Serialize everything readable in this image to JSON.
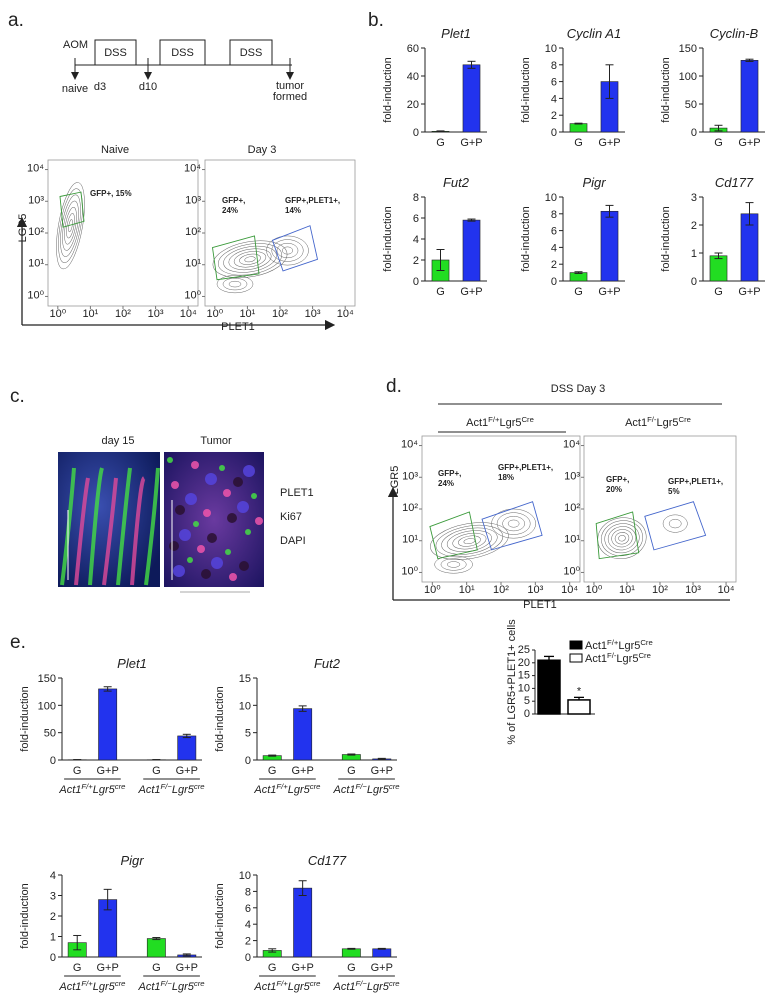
{
  "panel_a": {
    "label": "a.",
    "timeline": {
      "start": "AOM",
      "treatments": [
        "DSS",
        "DSS",
        "DSS"
      ],
      "points": [
        "naive",
        "d3",
        "d10"
      ],
      "end": [
        "tumor",
        "formed"
      ]
    },
    "flow": {
      "x_label": "PLET1",
      "y_label": "LGR5",
      "log": true,
      "lim": [
        0.5,
        20000
      ],
      "ticks": [
        {
          "value": 1,
          "label": "10⁰"
        },
        {
          "value": 10,
          "label": "10¹"
        },
        {
          "value": 100,
          "label": "10²"
        },
        {
          "value": 1000,
          "label": "10³"
        },
        {
          "value": 10000,
          "label": "10⁴"
        }
      ],
      "plots": [
        {
          "title": "Naive",
          "gates": [
            "GFP+, 15%"
          ]
        },
        {
          "title": "Day 3",
          "gates": [
            [
              "GFP+,",
              "24%"
            ],
            [
              "GFP+,PLET1+,",
              "14%"
            ]
          ]
        }
      ]
    }
  },
  "panel_b": {
    "label": "b.",
    "y_label": "fold-induction",
    "bar_colors": {
      "G": "#22dd22",
      "G+P": "#2233ee"
    },
    "charts": [
      {
        "type": "bar",
        "title": "Plet1",
        "categories": [
          "G",
          "G+P"
        ],
        "values": [
          0.5,
          48
        ],
        "errors": [
          0.3,
          2.5
        ],
        "ylim": [
          0,
          60
        ],
        "yticks": [
          0,
          20,
          40,
          60
        ]
      },
      {
        "type": "bar",
        "title": "Cyclin A1",
        "categories": [
          "G",
          "G+P"
        ],
        "values": [
          1,
          6
        ],
        "errors": [
          0.05,
          2
        ],
        "ylim": [
          0,
          10
        ],
        "yticks": [
          0,
          2,
          4,
          6,
          8,
          10
        ]
      },
      {
        "type": "bar",
        "title": "Cyclin-B",
        "categories": [
          "G",
          "G+P"
        ],
        "values": [
          7,
          128
        ],
        "errors": [
          5,
          2
        ],
        "ylim": [
          0,
          150
        ],
        "yticks": [
          0,
          50,
          100,
          150
        ]
      },
      {
        "type": "bar",
        "title": "Fut2",
        "categories": [
          "G",
          "G+P"
        ],
        "values": [
          2,
          5.8
        ],
        "errors": [
          1,
          0.1
        ],
        "ylim": [
          0,
          8
        ],
        "yticks": [
          0,
          2,
          4,
          6,
          8
        ]
      },
      {
        "type": "bar",
        "title": "Pigr",
        "categories": [
          "G",
          "G+P"
        ],
        "values": [
          1,
          8.3
        ],
        "errors": [
          0.1,
          0.7
        ],
        "ylim": [
          0,
          10
        ],
        "yticks": [
          0,
          2,
          4,
          6,
          8,
          10
        ]
      },
      {
        "type": "bar",
        "title": "Cd177",
        "categories": [
          "G",
          "G+P"
        ],
        "values": [
          0.9,
          2.4
        ],
        "errors": [
          0.1,
          0.4
        ],
        "ylim": [
          0,
          3
        ],
        "yticks": [
          0,
          1,
          2,
          3
        ]
      }
    ]
  },
  "panel_c": {
    "label": "c.",
    "titles": [
      "day 15",
      "Tumor"
    ],
    "legend": [
      {
        "name": "PLET1",
        "color": "#33ee33"
      },
      {
        "name": "Ki67",
        "color": "#ee2233"
      },
      {
        "name": "DAPI",
        "color": "#2233dd"
      }
    ]
  },
  "panel_d": {
    "label": "d.",
    "title": "DSS Day 3",
    "headers": [
      [
        "Act1",
        "F/+",
        "Lgr5",
        "Cre"
      ],
      [
        "Act1",
        "F/-",
        "Lgr5",
        "Cre"
      ]
    ],
    "x_label": "PLET1",
    "y_label": "LGR5",
    "gates": [
      [
        [
          "GFP+,",
          "24%"
        ],
        [
          "GFP+,PLET1+,",
          "18%"
        ]
      ],
      [
        [
          "GFP+,",
          "20%"
        ],
        [
          "GFP+,PLET1+,",
          "5%"
        ]
      ]
    ]
  },
  "panel_e": {
    "label": "e.",
    "y_label": "fold-induction",
    "bar_colors": {
      "G": "#22dd22",
      "G+P": "#2233ee"
    },
    "group_labels": [
      [
        "Act1",
        "F/+",
        "Lgr5",
        "cre"
      ],
      [
        "Act1",
        "F/−",
        "Lgr5",
        "cre"
      ]
    ],
    "charts": [
      {
        "type": "bar",
        "title": "Plet1",
        "categories": [
          "G",
          "G+P",
          "G",
          "G+P"
        ],
        "values": [
          0.5,
          130,
          0.5,
          44
        ],
        "errors": [
          0.3,
          4,
          0.3,
          3
        ],
        "ylim": [
          0,
          150
        ],
        "yticks": [
          0,
          50,
          100,
          150
        ]
      },
      {
        "type": "bar",
        "title": "Fut2",
        "categories": [
          "G",
          "G+P",
          "G",
          "G+P"
        ],
        "values": [
          0.8,
          9.4,
          1.0,
          0.2
        ],
        "errors": [
          0.1,
          0.5,
          0.1,
          0.1
        ],
        "ylim": [
          0,
          15
        ],
        "yticks": [
          0,
          5,
          10,
          15
        ]
      },
      {
        "type": "bar",
        "title": "Pigr",
        "categories": [
          "G",
          "G+P",
          "G",
          "G+P"
        ],
        "values": [
          0.7,
          2.8,
          0.9,
          0.1
        ],
        "errors": [
          0.35,
          0.5,
          0.05,
          0.05
        ],
        "ylim": [
          0,
          4
        ],
        "yticks": [
          0,
          1,
          2,
          3,
          4
        ]
      },
      {
        "type": "bar",
        "title": "Cd177",
        "categories": [
          "G",
          "G+P",
          "G",
          "G+P"
        ],
        "values": [
          0.8,
          8.4,
          1.0,
          1.0
        ],
        "errors": [
          0.2,
          0.9,
          0.05,
          0.05
        ],
        "ylim": [
          0,
          10
        ],
        "yticks": [
          0,
          2,
          4,
          6,
          8,
          10
        ]
      }
    ],
    "summary": {
      "type": "bar",
      "y_label": "% of LGR5+PLET1+ cells",
      "annotation": "*",
      "ylim": [
        0,
        25
      ],
      "yticks": [
        0,
        5,
        10,
        15,
        20,
        25
      ],
      "series": [
        {
          "name": [
            "Act1",
            "F/+",
            "Lgr5",
            "Cre"
          ],
          "color": "#000000",
          "values": [
            21
          ],
          "errors": [
            1.5
          ]
        },
        {
          "name": [
            "Act1",
            "F/-",
            "Lgr5",
            "Cre"
          ],
          "color": "#ffffff",
          "values": [
            5.5
          ],
          "errors": [
            1
          ]
        }
      ]
    }
  }
}
